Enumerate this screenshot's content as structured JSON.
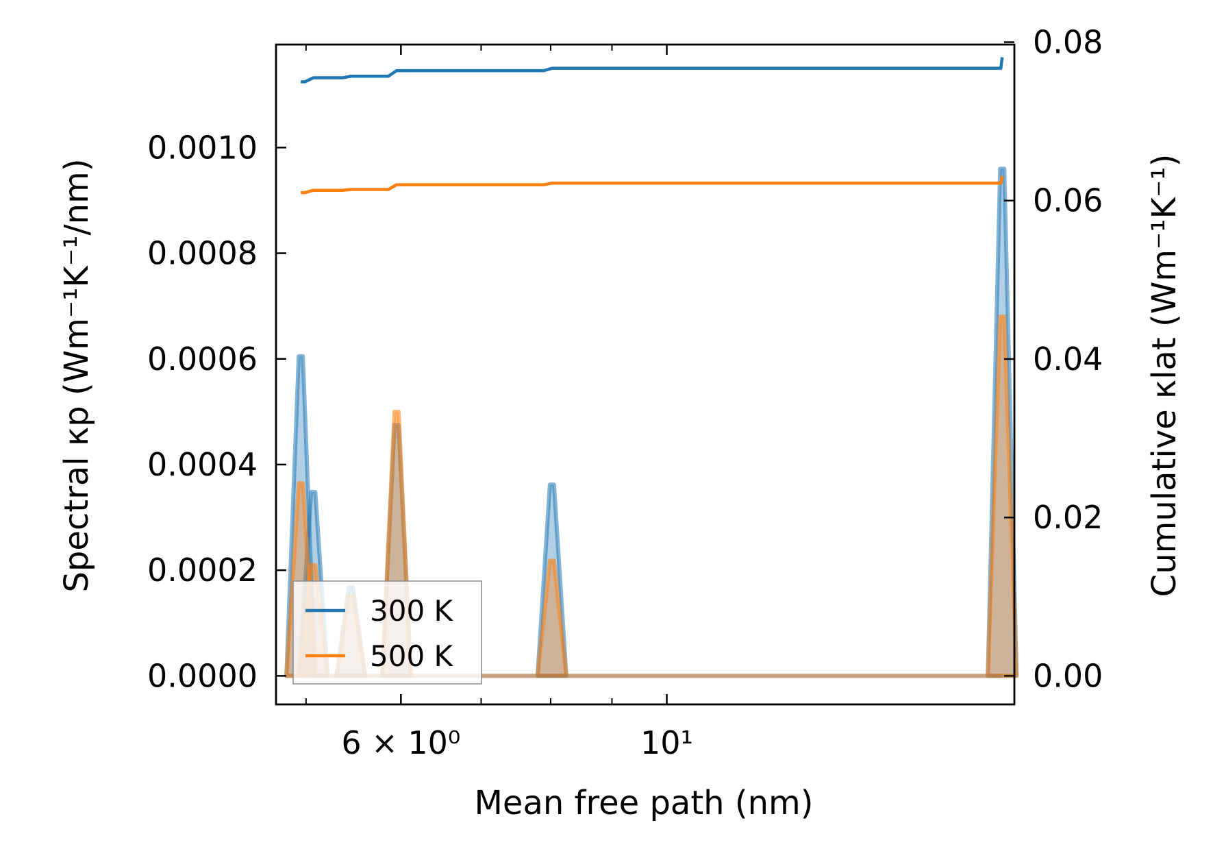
{
  "chart_data": {
    "type": "line",
    "xlabel": "Mean free path (nm)",
    "ylabel_left": "Spectral κp (Wm⁻¹K⁻¹/nm)",
    "ylabel_right": "Cumulative κlat (Wm⁻¹K⁻¹)",
    "xscale": "log",
    "xlim": [
      4.72,
      19.5
    ],
    "ylim_left": [
      -5.4e-05,
      0.001195
    ],
    "ylim_right": [
      -0.0036,
      0.0797
    ],
    "x_ticks": [
      {
        "value": 6,
        "label": "6 × 10⁰"
      },
      {
        "value": 10,
        "label": "10¹"
      }
    ],
    "x_minor_ticks": [
      5,
      7,
      8,
      9
    ],
    "y_left_ticks": [
      {
        "value": 0.0,
        "label": "0.0000"
      },
      {
        "value": 0.0002,
        "label": "0.0002"
      },
      {
        "value": 0.0004,
        "label": "0.0004"
      },
      {
        "value": 0.0006,
        "label": "0.0006"
      },
      {
        "value": 0.0008,
        "label": "0.0008"
      },
      {
        "value": 0.001,
        "label": "0.0010"
      }
    ],
    "y_right_ticks": [
      {
        "value": 0.0,
        "label": "0.00"
      },
      {
        "value": 0.02,
        "label": "0.02"
      },
      {
        "value": 0.04,
        "label": "0.04"
      },
      {
        "value": 0.06,
        "label": "0.06"
      },
      {
        "value": 0.08,
        "label": "0.08"
      }
    ],
    "legend": {
      "location": "lower-left",
      "entries": [
        "300 K",
        "500 K"
      ]
    },
    "series": [
      {
        "name": "300 K",
        "color": "#1f77b4",
        "spectral_peaks": [
          {
            "x": 4.95,
            "y": 0.000605
          },
          {
            "x": 5.07,
            "y": 0.000348
          },
          {
            "x": 5.45,
            "y": 0.000168
          },
          {
            "x": 5.95,
            "y": 0.000475
          },
          {
            "x": 8.02,
            "y": 0.000362
          },
          {
            "x": 19.05,
            "y": 0.00096
          }
        ],
        "cumulative": [
          {
            "x": 4.95,
            "y": 0.075
          },
          {
            "x": 5.07,
            "y": 0.0755
          },
          {
            "x": 5.45,
            "y": 0.0757
          },
          {
            "x": 5.95,
            "y": 0.0764
          },
          {
            "x": 8.02,
            "y": 0.0767
          },
          {
            "x": 19.0,
            "y": 0.0767
          },
          {
            "x": 19.05,
            "y": 0.0781
          }
        ]
      },
      {
        "name": "500 K",
        "color": "#ff7f0e",
        "spectral_peaks": [
          {
            "x": 4.95,
            "y": 0.000365
          },
          {
            "x": 5.07,
            "y": 0.00021
          },
          {
            "x": 5.45,
            "y": 0.000152
          },
          {
            "x": 5.95,
            "y": 0.0005
          },
          {
            "x": 8.02,
            "y": 0.000218
          },
          {
            "x": 19.05,
            "y": 0.00068
          }
        ],
        "cumulative": [
          {
            "x": 4.95,
            "y": 0.061
          },
          {
            "x": 5.07,
            "y": 0.0613
          },
          {
            "x": 5.45,
            "y": 0.0614
          },
          {
            "x": 5.95,
            "y": 0.062
          },
          {
            "x": 8.02,
            "y": 0.0622
          },
          {
            "x": 19.0,
            "y": 0.0622
          },
          {
            "x": 19.05,
            "y": 0.0631
          }
        ]
      }
    ]
  }
}
